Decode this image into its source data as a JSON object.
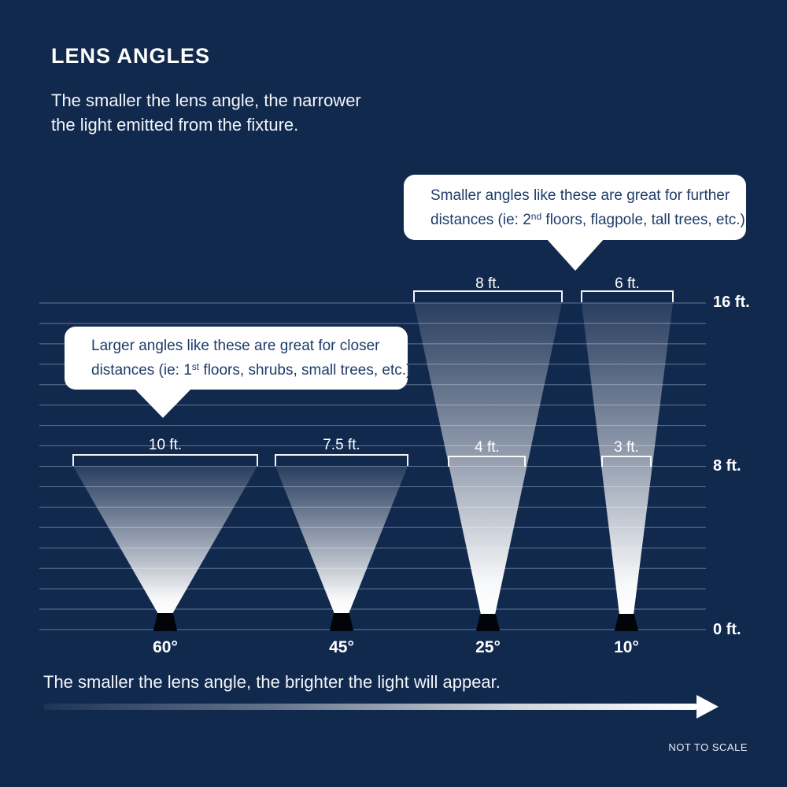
{
  "title": "LENS ANGLES",
  "subtitle": "The smaller the lens angle, the narrower\nthe light emitted from the fixture.",
  "callout_smaller": {
    "line1": "Smaller angles like these are great for further",
    "line2_pre": "distances (ie: 2",
    "line2_sup": "nd",
    "line2_post": " floors, flagpole, tall trees, etc.)"
  },
  "callout_larger": {
    "line1": "Larger angles like these are great for closer",
    "line2_pre": "distances (ie: 1",
    "line2_sup": "st",
    "line2_post": " floors, shrubs, small trees, etc.)"
  },
  "beams": [
    {
      "angle": "60°",
      "width_at_8ft": "10 ft."
    },
    {
      "angle": "45°",
      "width_at_8ft": "7.5 ft."
    },
    {
      "angle": "25°",
      "width_at_8ft": "4 ft.",
      "width_at_16ft": "8 ft."
    },
    {
      "angle": "10°",
      "width_at_8ft": "3 ft.",
      "width_at_16ft": "6 ft."
    }
  ],
  "axis": {
    "labels": [
      "16 ft.",
      "8 ft.",
      "0 ft."
    ],
    "gridline_count": 17
  },
  "footer": {
    "text": "The smaller the lens angle, the brighter the light will appear.",
    "note": "NOT TO SCALE"
  },
  "colors": {
    "background": "#12294E",
    "bubble_text": "#1E3C69",
    "beam": "#FFFFFF"
  }
}
